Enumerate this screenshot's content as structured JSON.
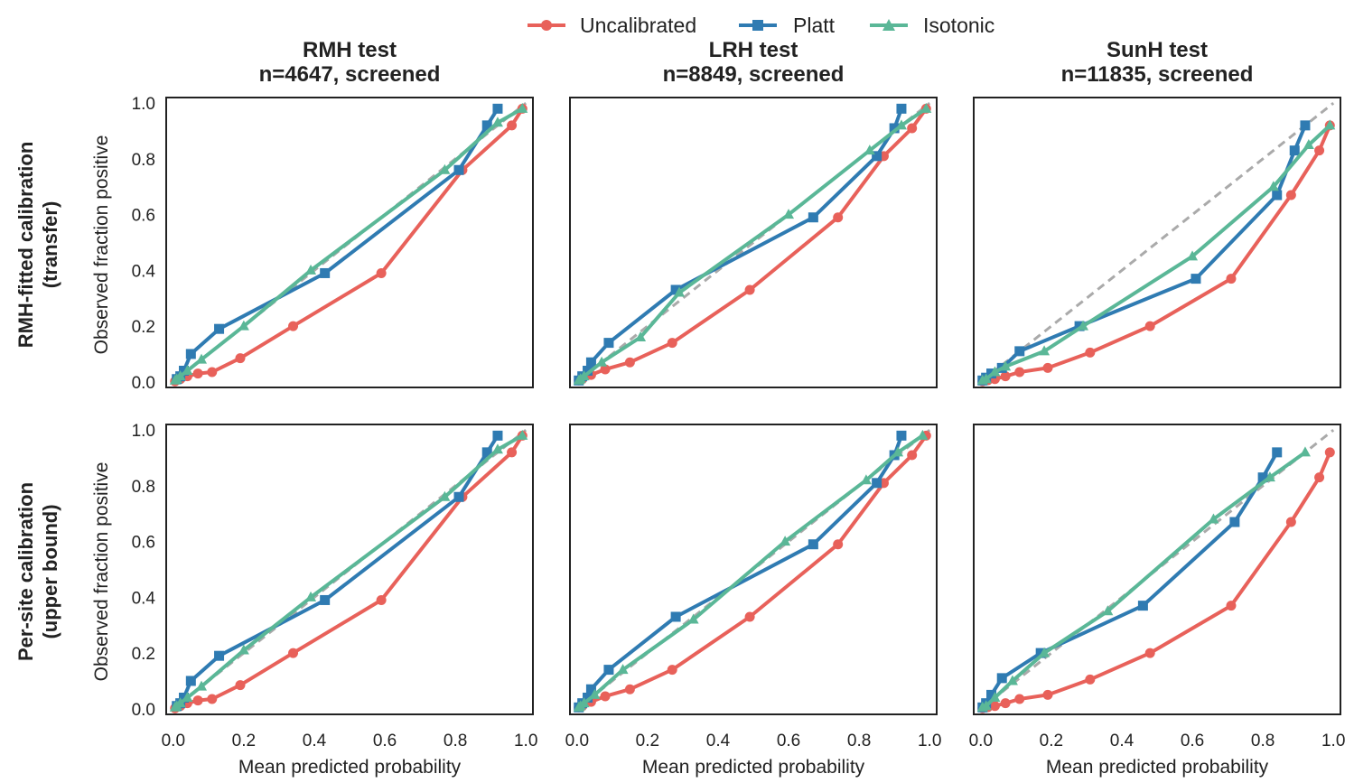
{
  "legend": {
    "placement": "top-center",
    "entries": [
      {
        "label": "Uncalibrated",
        "color": "#e8615a",
        "marker": "circle"
      },
      {
        "label": "Platt",
        "color": "#2f7bb2",
        "marker": "square"
      },
      {
        "label": "Isotonic",
        "color": "#5ab797",
        "marker": "triangle"
      }
    ]
  },
  "columns": [
    {
      "title_line1": "RMH test",
      "title_line2": "n=4647, screened"
    },
    {
      "title_line1": "LRH test",
      "title_line2": "n=8849, screened"
    },
    {
      "title_line1": "SunH test",
      "title_line2": "n=11835, screened"
    }
  ],
  "rows": [
    {
      "label_line1": "RMH-fitted calibration",
      "label_line2": "(transfer)"
    },
    {
      "label_line1": "Per-site calibration",
      "label_line2": "(upper bound)"
    }
  ],
  "xlabel": "Mean predicted probability",
  "ylabel": "Observed fraction positive",
  "x_ticks": [
    "0.0",
    "0.2",
    "0.4",
    "0.6",
    "0.8",
    "1.0"
  ],
  "y_ticks": [
    "0.0",
    "0.2",
    "0.4",
    "0.6",
    "0.8",
    "1.0"
  ],
  "chart_data": [
    {
      "type": "line",
      "row": 0,
      "col": 0,
      "xlim": [
        -0.02,
        1.02
      ],
      "ylim": [
        -0.02,
        1.02
      ],
      "grid": false,
      "reference_line": {
        "x": [
          0,
          1
        ],
        "y": [
          0,
          1
        ],
        "style": "dashed",
        "color": "#aaaaaa"
      },
      "series": [
        {
          "name": "Uncalibrated",
          "x": [
            0.005,
            0.02,
            0.04,
            0.07,
            0.11,
            0.19,
            0.34,
            0.59,
            0.82,
            0.96,
            0.99
          ],
          "y": [
            0.002,
            0.01,
            0.02,
            0.03,
            0.035,
            0.085,
            0.2,
            0.39,
            0.76,
            0.92,
            0.98
          ]
        },
        {
          "name": "Platt",
          "x": [
            0.01,
            0.02,
            0.03,
            0.05,
            0.13,
            0.43,
            0.81,
            0.89,
            0.92
          ],
          "y": [
            0.01,
            0.02,
            0.04,
            0.1,
            0.19,
            0.39,
            0.76,
            0.92,
            0.98
          ]
        },
        {
          "name": "Isotonic",
          "x": [
            0.005,
            0.01,
            0.02,
            0.04,
            0.08,
            0.2,
            0.39,
            0.77,
            0.92,
            0.99
          ],
          "y": [
            0.005,
            0.01,
            0.02,
            0.04,
            0.08,
            0.2,
            0.4,
            0.76,
            0.93,
            0.98
          ]
        }
      ]
    },
    {
      "type": "line",
      "row": 0,
      "col": 1,
      "xlim": [
        -0.02,
        1.02
      ],
      "ylim": [
        -0.02,
        1.02
      ],
      "grid": false,
      "reference_line": {
        "x": [
          0,
          1
        ],
        "y": [
          0,
          1
        ],
        "style": "dashed",
        "color": "#aaaaaa"
      },
      "series": [
        {
          "name": "Uncalibrated",
          "x": [
            0.005,
            0.015,
            0.04,
            0.08,
            0.15,
            0.27,
            0.49,
            0.74,
            0.87,
            0.95,
            0.99
          ],
          "y": [
            0.005,
            0.01,
            0.025,
            0.045,
            0.07,
            0.14,
            0.33,
            0.59,
            0.81,
            0.91,
            0.98
          ]
        },
        {
          "name": "Platt",
          "x": [
            0.005,
            0.015,
            0.03,
            0.04,
            0.09,
            0.28,
            0.67,
            0.85,
            0.9,
            0.92
          ],
          "y": [
            0.005,
            0.02,
            0.04,
            0.07,
            0.14,
            0.33,
            0.59,
            0.81,
            0.91,
            0.98
          ]
        },
        {
          "name": "Isotonic",
          "x": [
            0.005,
            0.01,
            0.02,
            0.07,
            0.18,
            0.29,
            0.6,
            0.83,
            0.92,
            0.99
          ],
          "y": [
            0.005,
            0.01,
            0.02,
            0.07,
            0.16,
            0.32,
            0.6,
            0.83,
            0.92,
            0.98
          ]
        }
      ]
    },
    {
      "type": "line",
      "row": 0,
      "col": 2,
      "xlim": [
        -0.02,
        1.02
      ],
      "ylim": [
        -0.02,
        1.02
      ],
      "grid": false,
      "reference_line": {
        "x": [
          0,
          1
        ],
        "y": [
          0,
          1
        ],
        "style": "dashed",
        "color": "#aaaaaa"
      },
      "series": [
        {
          "name": "Uncalibrated",
          "x": [
            0.005,
            0.02,
            0.04,
            0.07,
            0.11,
            0.19,
            0.31,
            0.48,
            0.71,
            0.88,
            0.96,
            0.99
          ],
          "y": [
            0.002,
            0.006,
            0.01,
            0.02,
            0.035,
            0.05,
            0.105,
            0.2,
            0.37,
            0.67,
            0.83,
            0.92
          ]
        },
        {
          "name": "Platt",
          "x": [
            0.005,
            0.015,
            0.03,
            0.06,
            0.11,
            0.28,
            0.61,
            0.84,
            0.89,
            0.92
          ],
          "y": [
            0.005,
            0.015,
            0.03,
            0.05,
            0.11,
            0.2,
            0.37,
            0.67,
            0.83,
            0.92
          ]
        },
        {
          "name": "Isotonic",
          "x": [
            0.005,
            0.015,
            0.04,
            0.07,
            0.18,
            0.29,
            0.6,
            0.83,
            0.93,
            0.99
          ],
          "y": [
            0.005,
            0.01,
            0.035,
            0.055,
            0.11,
            0.2,
            0.45,
            0.7,
            0.85,
            0.92
          ]
        }
      ]
    },
    {
      "type": "line",
      "row": 1,
      "col": 0,
      "xlim": [
        -0.02,
        1.02
      ],
      "ylim": [
        -0.02,
        1.02
      ],
      "grid": false,
      "reference_line": {
        "x": [
          0,
          1
        ],
        "y": [
          0,
          1
        ],
        "style": "dashed",
        "color": "#aaaaaa"
      },
      "series": [
        {
          "name": "Uncalibrated",
          "x": [
            0.005,
            0.02,
            0.04,
            0.07,
            0.11,
            0.19,
            0.34,
            0.59,
            0.82,
            0.96,
            0.99
          ],
          "y": [
            0.002,
            0.01,
            0.02,
            0.03,
            0.035,
            0.085,
            0.2,
            0.39,
            0.76,
            0.92,
            0.98
          ]
        },
        {
          "name": "Platt",
          "x": [
            0.01,
            0.02,
            0.03,
            0.05,
            0.13,
            0.43,
            0.81,
            0.89,
            0.92
          ],
          "y": [
            0.01,
            0.02,
            0.04,
            0.1,
            0.19,
            0.39,
            0.76,
            0.92,
            0.98
          ]
        },
        {
          "name": "Isotonic",
          "x": [
            0.005,
            0.01,
            0.02,
            0.04,
            0.08,
            0.2,
            0.39,
            0.77,
            0.92,
            0.99
          ],
          "y": [
            0.005,
            0.01,
            0.02,
            0.04,
            0.08,
            0.21,
            0.4,
            0.76,
            0.93,
            0.98
          ]
        }
      ]
    },
    {
      "type": "line",
      "row": 1,
      "col": 1,
      "xlim": [
        -0.02,
        1.02
      ],
      "ylim": [
        -0.02,
        1.02
      ],
      "grid": false,
      "reference_line": {
        "x": [
          0,
          1
        ],
        "y": [
          0,
          1
        ],
        "style": "dashed",
        "color": "#aaaaaa"
      },
      "series": [
        {
          "name": "Uncalibrated",
          "x": [
            0.005,
            0.015,
            0.04,
            0.08,
            0.15,
            0.27,
            0.49,
            0.74,
            0.87,
            0.95,
            0.99
          ],
          "y": [
            0.005,
            0.01,
            0.025,
            0.045,
            0.07,
            0.14,
            0.33,
            0.59,
            0.81,
            0.91,
            0.98
          ]
        },
        {
          "name": "Platt",
          "x": [
            0.005,
            0.015,
            0.03,
            0.04,
            0.09,
            0.28,
            0.67,
            0.85,
            0.9,
            0.92
          ],
          "y": [
            0.005,
            0.02,
            0.04,
            0.07,
            0.14,
            0.33,
            0.59,
            0.81,
            0.91,
            0.98
          ]
        },
        {
          "name": "Isotonic",
          "x": [
            0.005,
            0.01,
            0.02,
            0.05,
            0.13,
            0.33,
            0.59,
            0.82,
            0.91,
            0.98
          ],
          "y": [
            0.005,
            0.01,
            0.02,
            0.05,
            0.14,
            0.32,
            0.6,
            0.82,
            0.92,
            0.98
          ]
        }
      ]
    },
    {
      "type": "line",
      "row": 1,
      "col": 2,
      "xlim": [
        -0.02,
        1.02
      ],
      "ylim": [
        -0.02,
        1.02
      ],
      "grid": false,
      "reference_line": {
        "x": [
          0,
          1
        ],
        "y": [
          0,
          1
        ],
        "style": "dashed",
        "color": "#aaaaaa"
      },
      "series": [
        {
          "name": "Uncalibrated",
          "x": [
            0.005,
            0.02,
            0.04,
            0.07,
            0.11,
            0.19,
            0.31,
            0.48,
            0.71,
            0.88,
            0.96,
            0.99
          ],
          "y": [
            0.002,
            0.006,
            0.01,
            0.02,
            0.035,
            0.05,
            0.105,
            0.2,
            0.37,
            0.67,
            0.83,
            0.92
          ]
        },
        {
          "name": "Platt",
          "x": [
            0.005,
            0.015,
            0.03,
            0.06,
            0.17,
            0.46,
            0.72,
            0.8,
            0.84
          ],
          "y": [
            0.005,
            0.02,
            0.05,
            0.11,
            0.2,
            0.37,
            0.67,
            0.83,
            0.92
          ]
        },
        {
          "name": "Isotonic",
          "x": [
            0.005,
            0.015,
            0.04,
            0.09,
            0.18,
            0.36,
            0.66,
            0.82,
            0.92
          ],
          "y": [
            0.005,
            0.01,
            0.04,
            0.1,
            0.2,
            0.35,
            0.68,
            0.83,
            0.92
          ]
        }
      ]
    }
  ]
}
